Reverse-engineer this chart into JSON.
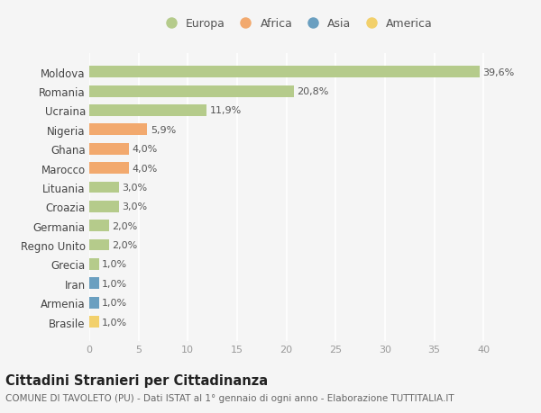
{
  "countries": [
    "Brasile",
    "Armenia",
    "Iran",
    "Grecia",
    "Regno Unito",
    "Germania",
    "Croazia",
    "Lituania",
    "Marocco",
    "Ghana",
    "Nigeria",
    "Ucraina",
    "Romania",
    "Moldova"
  ],
  "values": [
    1.0,
    1.0,
    1.0,
    1.0,
    2.0,
    2.0,
    3.0,
    3.0,
    4.0,
    4.0,
    5.9,
    11.9,
    20.8,
    39.6
  ],
  "labels": [
    "1,0%",
    "1,0%",
    "1,0%",
    "1,0%",
    "2,0%",
    "2,0%",
    "3,0%",
    "3,0%",
    "4,0%",
    "4,0%",
    "5,9%",
    "11,9%",
    "20,8%",
    "39,6%"
  ],
  "bar_colors": [
    "#f2d06b",
    "#6a9fc0",
    "#6a9fc0",
    "#b5cb8b",
    "#b5cb8b",
    "#b5cb8b",
    "#b5cb8b",
    "#b5cb8b",
    "#f2a96e",
    "#f2a96e",
    "#f2a96e",
    "#b5cb8b",
    "#b5cb8b",
    "#b5cb8b"
  ],
  "title": "Cittadini Stranieri per Cittadinanza",
  "subtitle": "COMUNE DI TAVOLETO (PU) - Dati ISTAT al 1° gennaio di ogni anno - Elaborazione TUTTITALIA.IT",
  "xlim": [
    0,
    42
  ],
  "xticks": [
    0,
    5,
    10,
    15,
    20,
    25,
    30,
    35,
    40
  ],
  "legend_labels": [
    "Europa",
    "Africa",
    "Asia",
    "America"
  ],
  "legend_colors": [
    "#b5cb8b",
    "#f2a96e",
    "#6a9fc0",
    "#f2d06b"
  ],
  "background_color": "#f5f5f5",
  "grid_color": "#ffffff",
  "bar_height": 0.6
}
